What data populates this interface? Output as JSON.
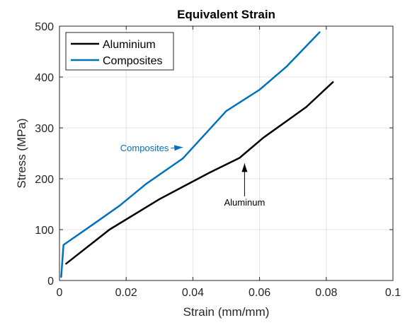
{
  "chart_data": {
    "type": "line",
    "title": "Equivalent Strain",
    "xlabel": "Strain (mm/mm)",
    "ylabel": "Stress (MPa)",
    "xlim": [
      0,
      0.1
    ],
    "ylim": [
      0,
      500
    ],
    "xticks": [
      0,
      0.02,
      0.04,
      0.06,
      0.08,
      0.1
    ],
    "xtick_labels": [
      "0",
      "0.02",
      "0.04",
      "0.06",
      "0.08",
      "0.1"
    ],
    "yticks": [
      0,
      100,
      200,
      300,
      400,
      500
    ],
    "ytick_labels": [
      "0",
      "100",
      "200",
      "300",
      "400",
      "500"
    ],
    "grid": true,
    "legend_position": "top-left",
    "series": [
      {
        "name": "Aluminium",
        "color": "#000000",
        "x": [
          0.002,
          0.015,
          0.03,
          0.045,
          0.054,
          0.061,
          0.074,
          0.082
        ],
        "y": [
          33,
          100,
          160,
          212,
          241,
          280,
          341,
          390
        ]
      },
      {
        "name": "Composites",
        "color": "#0072bd",
        "x": [
          0.0005,
          0.0012,
          0.01,
          0.018,
          0.026,
          0.037,
          0.05,
          0.06,
          0.068,
          0.078
        ],
        "y": [
          7,
          70,
          110,
          147,
          190,
          240,
          333,
          375,
          420,
          488
        ]
      }
    ],
    "annotations": [
      {
        "text": "Composites",
        "color": "#0072bd",
        "x": 0.0255,
        "y": 260,
        "arrow_to": [
          0.037,
          262
        ]
      },
      {
        "text": "Aluminum",
        "color": "#000000",
        "x": 0.0555,
        "y": 153,
        "arrow_to": [
          0.0555,
          230
        ]
      }
    ]
  }
}
